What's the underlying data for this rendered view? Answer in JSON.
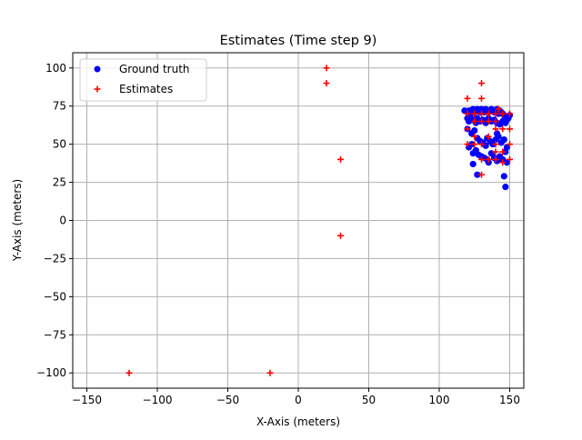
{
  "chart_data": {
    "type": "scatter",
    "title": "Estimates (Time step 9)",
    "xlabel": "X-Axis (meters)",
    "ylabel": "Y-Axis (meters)",
    "xlim": [
      -160,
      160
    ],
    "ylim": [
      -110,
      110
    ],
    "xticks": [
      -150,
      -100,
      -50,
      0,
      50,
      100,
      150
    ],
    "yticks": [
      -100,
      -75,
      -50,
      -25,
      0,
      25,
      50,
      75,
      100
    ],
    "xtick_labels": [
      "−150",
      "−100",
      "−50",
      "0",
      "50",
      "100",
      "150"
    ],
    "ytick_labels": [
      "−100",
      "−75",
      "−50",
      "−25",
      "0",
      "25",
      "50",
      "75",
      "100"
    ],
    "grid": true,
    "legend_position": "upper-left",
    "series": [
      {
        "name": "Ground truth",
        "marker": "circle",
        "color": "#0000ff",
        "points": [
          [
            118,
            72
          ],
          [
            120,
            71
          ],
          [
            121,
            72
          ],
          [
            122,
            70
          ],
          [
            123,
            72
          ],
          [
            124,
            73
          ],
          [
            125,
            71
          ],
          [
            126,
            72
          ],
          [
            127,
            73
          ],
          [
            128,
            72
          ],
          [
            129,
            71
          ],
          [
            130,
            73
          ],
          [
            131,
            72
          ],
          [
            132,
            71
          ],
          [
            133,
            73
          ],
          [
            134,
            72
          ],
          [
            135,
            71
          ],
          [
            136,
            72
          ],
          [
            137,
            73
          ],
          [
            138,
            72
          ],
          [
            139,
            71
          ],
          [
            140,
            72
          ],
          [
            141,
            73
          ],
          [
            142,
            70
          ],
          [
            143,
            72
          ],
          [
            144,
            71
          ],
          [
            145,
            70
          ],
          [
            146,
            69
          ],
          [
            147,
            68
          ],
          [
            148,
            66
          ],
          [
            149,
            67
          ],
          [
            150,
            69
          ],
          [
            120,
            67
          ],
          [
            121,
            65
          ],
          [
            122,
            68
          ],
          [
            124,
            66
          ],
          [
            126,
            64
          ],
          [
            127,
            67
          ],
          [
            129,
            65
          ],
          [
            131,
            66
          ],
          [
            133,
            64
          ],
          [
            135,
            67
          ],
          [
            137,
            65
          ],
          [
            139,
            66
          ],
          [
            141,
            64
          ],
          [
            143,
            63
          ],
          [
            145,
            65
          ],
          [
            147,
            64
          ],
          [
            120,
            60
          ],
          [
            123,
            57
          ],
          [
            125,
            59
          ],
          [
            127,
            54
          ],
          [
            129,
            52
          ],
          [
            131,
            51
          ],
          [
            133,
            49
          ],
          [
            134,
            54
          ],
          [
            136,
            52
          ],
          [
            138,
            50
          ],
          [
            140,
            53
          ],
          [
            141,
            57
          ],
          [
            142,
            55
          ],
          [
            144,
            51
          ],
          [
            146,
            53
          ],
          [
            148,
            48
          ],
          [
            121,
            48
          ],
          [
            123,
            50
          ],
          [
            124,
            44
          ],
          [
            126,
            46
          ],
          [
            128,
            43
          ],
          [
            130,
            42
          ],
          [
            132,
            41
          ],
          [
            134,
            40
          ],
          [
            135,
            38
          ],
          [
            137,
            44
          ],
          [
            139,
            41
          ],
          [
            141,
            39
          ],
          [
            143,
            42
          ],
          [
            145,
            40
          ],
          [
            147,
            45
          ],
          [
            148,
            38
          ],
          [
            124,
            37
          ],
          [
            127,
            30
          ],
          [
            146,
            29
          ],
          [
            147,
            22
          ]
        ]
      },
      {
        "name": "Estimates",
        "marker": "plus",
        "color": "#ff0000",
        "points": [
          [
            20,
            100
          ],
          [
            20,
            90
          ],
          [
            30,
            40
          ],
          [
            30,
            -10
          ],
          [
            -120,
            -100
          ],
          [
            -20,
            -100
          ],
          [
            120,
            80
          ],
          [
            130,
            90
          ],
          [
            130,
            80
          ],
          [
            120,
            70
          ],
          [
            125,
            70
          ],
          [
            130,
            70
          ],
          [
            135,
            70
          ],
          [
            140,
            70
          ],
          [
            142,
            73
          ],
          [
            145,
            70
          ],
          [
            150,
            70
          ],
          [
            140,
            65
          ],
          [
            135,
            65
          ],
          [
            130,
            65
          ],
          [
            125,
            65
          ],
          [
            145,
            60
          ],
          [
            150,
            60
          ],
          [
            120,
            60
          ],
          [
            140,
            60
          ],
          [
            125,
            50
          ],
          [
            120,
            50
          ],
          [
            130,
            50
          ],
          [
            140,
            50
          ],
          [
            150,
            50
          ],
          [
            145,
            45
          ],
          [
            130,
            40
          ],
          [
            135,
            40
          ],
          [
            140,
            40
          ],
          [
            145,
            38
          ],
          [
            150,
            40
          ],
          [
            130,
            30
          ],
          [
            140,
            45
          ],
          [
            135,
            55
          ],
          [
            125,
            55
          ]
        ]
      }
    ]
  }
}
